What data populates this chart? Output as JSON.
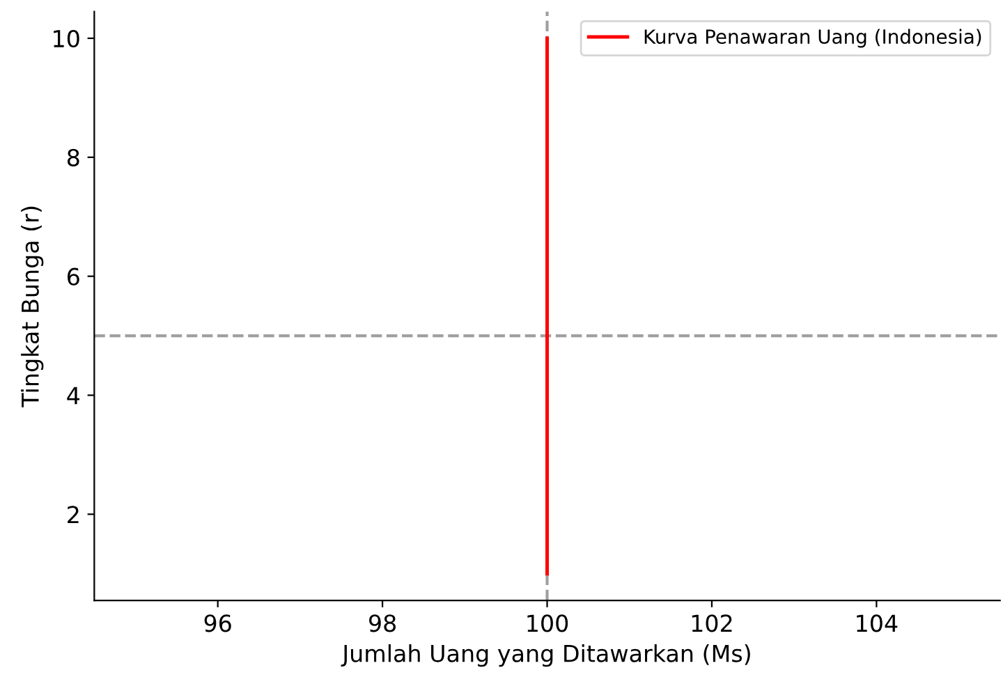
{
  "chart_data": {
    "type": "line",
    "xlabel": "Jumlah Uang yang Ditawarkan (Ms)",
    "ylabel": "Tingkat Bunga (r)",
    "series": [
      {
        "name": "Kurva Penawaran Uang (Indonesia)",
        "color": "#ff0000",
        "x": [
          100,
          100
        ],
        "values": [
          1,
          10
        ]
      }
    ],
    "xlim": [
      94.5,
      105.5
    ],
    "xticks": [
      96,
      98,
      100,
      102,
      104
    ],
    "ylim": [
      0.55,
      10.45
    ],
    "yticks": [
      2,
      4,
      6,
      8,
      10
    ],
    "ref_lines": [
      {
        "axis": "x",
        "value": 100,
        "color": "#a0a0a0",
        "line_style": "dashed"
      },
      {
        "axis": "y",
        "value": 5,
        "color": "#a0a0a0",
        "line_style": "dashed"
      }
    ],
    "grid": false,
    "legend": "top right",
    "line_style": "solid",
    "marker": "none"
  }
}
